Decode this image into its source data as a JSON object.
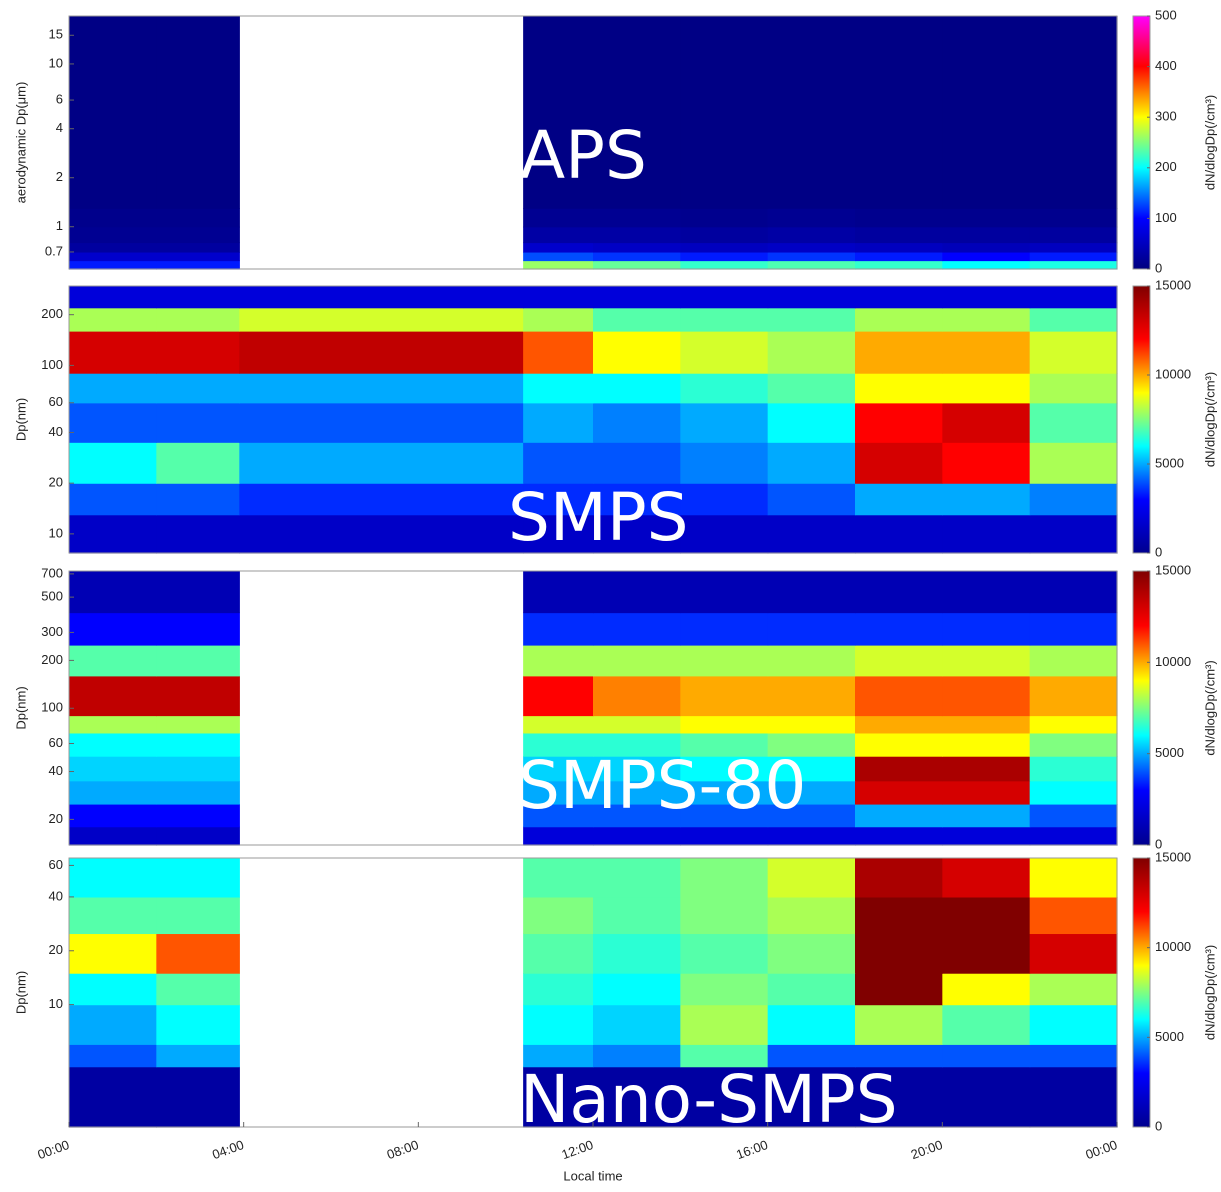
{
  "chart_data": [
    {
      "type": "heatmap",
      "label": "APS",
      "ylabel": "aerodynamic Dp(μm)",
      "log_y": true,
      "ylim": [
        0.55,
        19.7
      ],
      "yticks": [
        0.7,
        1,
        2,
        4,
        6,
        10,
        15
      ],
      "xlim": [
        0,
        24
      ],
      "xbins": [
        0,
        2,
        3.9,
        10.4,
        12,
        14,
        16,
        18,
        20,
        22,
        24
      ],
      "ybins": [
        0.55,
        0.62,
        0.7,
        0.8,
        1,
        1.3,
        19.7
      ],
      "values": [
        [
          110,
          110,
          null,
          260,
          240,
          220,
          230,
          220,
          200,
          210
        ],
        [
          60,
          60,
          null,
          130,
          120,
          110,
          120,
          110,
          100,
          110
        ],
        [
          25,
          25,
          null,
          60,
          55,
          50,
          55,
          50,
          45,
          50
        ],
        [
          15,
          15,
          null,
          30,
          30,
          25,
          30,
          25,
          25,
          25
        ],
        [
          10,
          10,
          null,
          15,
          15,
          12,
          15,
          12,
          12,
          12
        ],
        [
          5,
          5,
          null,
          5,
          5,
          5,
          5,
          5,
          5,
          5
        ]
      ],
      "clim": [
        0,
        500
      ],
      "cticks": [
        0,
        100,
        200,
        300,
        400,
        500
      ],
      "clabel": "dN/dlogDp(/cm³)",
      "colormap": [
        "#00007f",
        "#0000ff",
        "#00ffff",
        "#ffff00",
        "#ff0000",
        "#ff00ff"
      ]
    },
    {
      "type": "heatmap",
      "label": "SMPS",
      "ylabel": "Dp(nm)",
      "log_y": true,
      "ylim": [
        7.7,
        296
      ],
      "yticks": [
        10,
        20,
        40,
        60,
        100,
        200
      ],
      "xlim": [
        0,
        24
      ],
      "xbins": [
        0,
        2,
        3.9,
        10.4,
        12,
        14,
        16,
        18,
        20,
        22,
        24
      ],
      "ybins": [
        7.7,
        13,
        20,
        35,
        60,
        90,
        160,
        220,
        296
      ],
      "values": [
        [
          1500,
          1500,
          1500,
          1500,
          1500,
          1500,
          1500,
          1500,
          1500,
          1500
        ],
        [
          4000,
          4000,
          3500,
          3500,
          3500,
          3500,
          4000,
          5000,
          5000,
          4500
        ],
        [
          6000,
          7000,
          5000,
          4000,
          4000,
          4500,
          5000,
          13000,
          12000,
          8000
        ],
        [
          4000,
          4000,
          4000,
          5000,
          4500,
          5000,
          6000,
          12000,
          13000,
          7000
        ],
        [
          5000,
          5000,
          5000,
          6000,
          6000,
          6500,
          7000,
          9000,
          9000,
          8000
        ],
        [
          13000,
          13000,
          13500,
          11000,
          9000,
          8500,
          8000,
          10000,
          10000,
          8500
        ],
        [
          8000,
          8000,
          8500,
          8000,
          7000,
          7000,
          7000,
          8000,
          8000,
          7000
        ],
        [
          2000,
          2000,
          2000,
          2000,
          2000,
          2000,
          2000,
          2000,
          2000,
          2000
        ]
      ],
      "clim": [
        0,
        15000
      ],
      "cticks": [
        0,
        5000,
        10000,
        15000
      ],
      "clabel": "dN/dlogDp(/cm³)",
      "colormap": [
        "#00008f",
        "#0000ff",
        "#00ffff",
        "#ffff00",
        "#ff0000",
        "#800000"
      ]
    },
    {
      "type": "heatmap",
      "label": "SMPS-80",
      "ylabel": "Dp(nm)",
      "log_y": true,
      "ylim": [
        13.8,
        730
      ],
      "yticks": [
        20,
        40,
        60,
        100,
        200,
        300,
        500,
        700
      ],
      "xlim": [
        0,
        24
      ],
      "xbins": [
        0,
        2,
        3.9,
        10.4,
        12,
        14,
        16,
        18,
        20,
        22,
        24
      ],
      "ybins": [
        13.8,
        18,
        25,
        35,
        50,
        70,
        90,
        160,
        250,
        400,
        730
      ],
      "values": [
        [
          1500,
          1500,
          null,
          2000,
          2000,
          2000,
          2000,
          2000,
          2000,
          2000
        ],
        [
          3000,
          3000,
          null,
          4000,
          4000,
          4000,
          4000,
          5000,
          5000,
          4000
        ],
        [
          5000,
          5000,
          null,
          5000,
          5000,
          5000,
          5000,
          13000,
          13000,
          6000
        ],
        [
          5500,
          5500,
          null,
          5500,
          5500,
          6000,
          6000,
          14000,
          14000,
          6500
        ],
        [
          6000,
          6000,
          null,
          6500,
          6500,
          7000,
          7500,
          9000,
          9000,
          7500
        ],
        [
          8000,
          8000,
          null,
          8500,
          8500,
          9000,
          9000,
          10000,
          10000,
          9000
        ],
        [
          13500,
          13500,
          null,
          12000,
          10500,
          10000,
          10000,
          11000,
          11000,
          10000
        ],
        [
          7000,
          7000,
          null,
          8000,
          8000,
          8000,
          8000,
          8500,
          8500,
          8000
        ],
        [
          3000,
          3000,
          null,
          3500,
          3500,
          3500,
          3500,
          3500,
          3500,
          3500
        ],
        [
          1000,
          1000,
          null,
          1000,
          1000,
          1000,
          1000,
          1000,
          1000,
          1000
        ]
      ],
      "clim": [
        0,
        15000
      ],
      "cticks": [
        0,
        5000,
        10000,
        15000
      ],
      "clabel": "dN/dlogDp(/cm³)",
      "colormap": [
        "#00008f",
        "#0000ff",
        "#00ffff",
        "#ffff00",
        "#ff0000",
        "#800000"
      ]
    },
    {
      "type": "heatmap",
      "label": "Nano-SMPS",
      "ylabel": "Dp(nm)",
      "log_y": true,
      "ylim": [
        2.07,
        66
      ],
      "yticks": [
        10,
        20,
        40,
        60
      ],
      "xlim": [
        0,
        24
      ],
      "xticks": [
        {
          "value": 0,
          "label": "00:00"
        },
        {
          "value": 4,
          "label": "04:00"
        },
        {
          "value": 8,
          "label": "08:00"
        },
        {
          "value": 12,
          "label": "12:00"
        },
        {
          "value": 16,
          "label": "16:00"
        },
        {
          "value": 20,
          "label": "20:00"
        },
        {
          "value": 24,
          "label": "00:00"
        }
      ],
      "xlabel": "Local time",
      "xbins": [
        0,
        2,
        3.9,
        10.4,
        12,
        14,
        16,
        18,
        20,
        22,
        24
      ],
      "ybins": [
        2.07,
        4.5,
        6,
        10,
        15,
        25,
        40,
        66
      ],
      "values": [
        [
          500,
          500,
          null,
          500,
          500,
          500,
          500,
          500,
          500,
          500
        ],
        [
          4000,
          5000,
          null,
          5000,
          4500,
          7000,
          4000,
          4000,
          4000,
          4000
        ],
        [
          5000,
          6000,
          null,
          6000,
          5500,
          8000,
          6000,
          8000,
          7000,
          6000
        ],
        [
          6000,
          7000,
          null,
          6500,
          6000,
          7500,
          7000,
          15000,
          9000,
          8000
        ],
        [
          9000,
          11000,
          null,
          7000,
          6500,
          7000,
          7500,
          15000,
          15000,
          13000
        ],
        [
          7000,
          7000,
          null,
          7500,
          7000,
          7500,
          8000,
          15000,
          15000,
          11000
        ],
        [
          6000,
          6000,
          null,
          7000,
          7000,
          7500,
          8500,
          14000,
          13000,
          9000
        ]
      ],
      "clim": [
        0,
        15000
      ],
      "cticks": [
        0,
        5000,
        10000,
        15000
      ],
      "clabel": "dN/dlogDp(/cm³)",
      "colormap": [
        "#00008f",
        "#0000ff",
        "#00ffff",
        "#ffff00",
        "#ff0000",
        "#800000"
      ]
    }
  ]
}
